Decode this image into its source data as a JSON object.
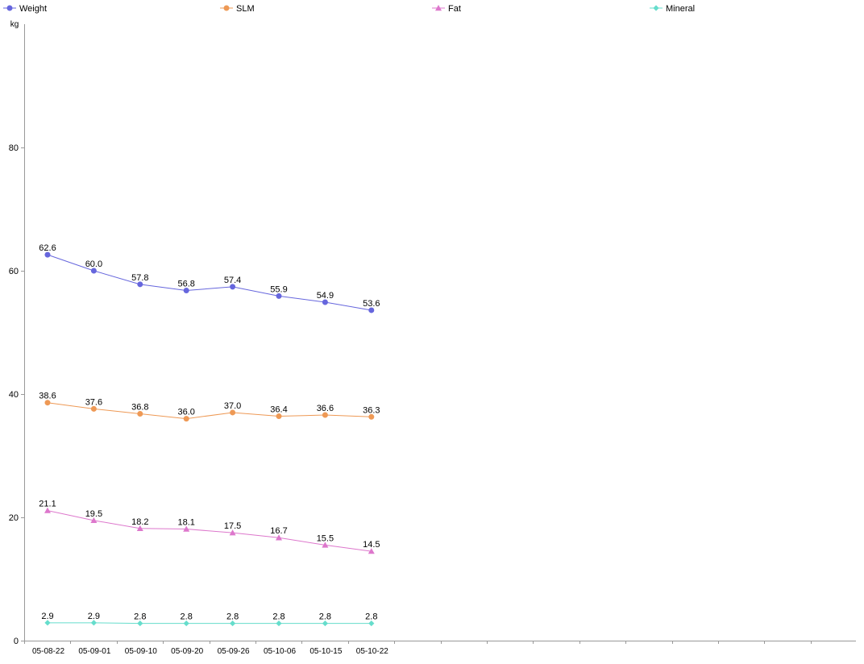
{
  "chart_data": {
    "type": "line",
    "ylabel": "kg",
    "ylim": [
      0,
      100
    ],
    "y_ticks": [
      0,
      20,
      40,
      60,
      80
    ],
    "grid": false,
    "legend_placement": "top",
    "categories": [
      "05-08-22",
      "05-09-01",
      "05-09-10",
      "05-09-20",
      "05-09-26",
      "05-10-06",
      "05-10-15",
      "05-10-22"
    ],
    "empty_slots_after": 10,
    "series": [
      {
        "name": "Weight",
        "marker": "circle",
        "color": "#6666dd",
        "values": [
          62.6,
          60.0,
          57.8,
          56.8,
          57.4,
          55.9,
          54.9,
          53.6
        ],
        "labels": [
          "62.6",
          "60.0",
          "57.8",
          "56.8",
          "57.4",
          "55.9",
          "54.9",
          "53.6"
        ]
      },
      {
        "name": "SLM",
        "marker": "circle",
        "color": "#ee9955",
        "values": [
          38.6,
          37.6,
          36.8,
          36.0,
          37.0,
          36.4,
          36.6,
          36.3
        ],
        "labels": [
          "38.6",
          "37.6",
          "36.8",
          "36.0",
          "37.0",
          "36.4",
          "36.6",
          "36.3"
        ]
      },
      {
        "name": "Fat",
        "marker": "triangle",
        "color": "#dd77cc",
        "values": [
          21.1,
          19.5,
          18.2,
          18.1,
          17.5,
          16.7,
          15.5,
          14.5
        ],
        "labels": [
          "21.1",
          "19.5",
          "18.2",
          "18.1",
          "17.5",
          "16.7",
          "15.5",
          "14.5"
        ]
      },
      {
        "name": "Mineral",
        "marker": "diamond",
        "color": "#66ddcc",
        "values": [
          2.9,
          2.9,
          2.8,
          2.8,
          2.8,
          2.8,
          2.8,
          2.8
        ],
        "labels": [
          "2.9",
          "2.9",
          "2.8",
          "2.8",
          "2.8",
          "2.8",
          "2.8",
          "2.8"
        ]
      }
    ]
  }
}
